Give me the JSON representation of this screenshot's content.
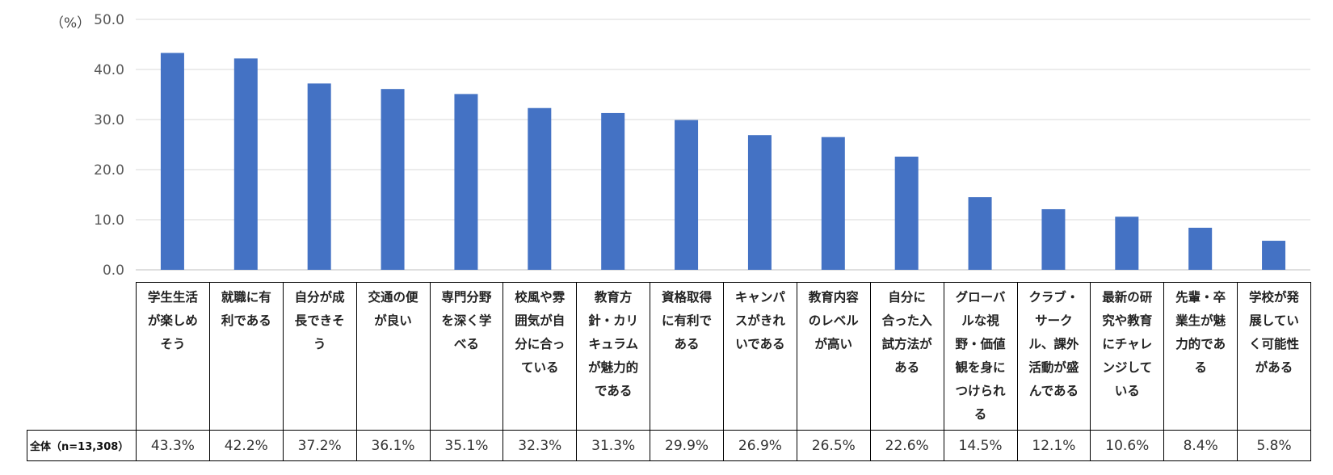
{
  "chart_data": {
    "type": "bar",
    "unit_label": "（%）",
    "ylim": [
      0,
      50
    ],
    "yticks": [
      "0.0",
      "10.0",
      "20.0",
      "30.0",
      "40.0",
      "50.0"
    ],
    "grid": true,
    "bar_color": "#4472C4",
    "categories": [
      "学生生活が楽しめそう",
      "就職に有利である",
      "自分が成長できそう",
      "交通の便が良い",
      "専門分野を深く学べる",
      "校風や雰囲気が自分に合っている",
      "教育方針・カリキュラムが魅力的である",
      "資格取得に有利である",
      "キャンパスがきれいである",
      "教育内容のレベルが高い",
      "自分に合った入試方法がある",
      "グローバルな視野・価値観を身につけられる",
      "クラブ・サークル、課外活動が盛んである",
      "最新の研究や教育にチャレンジしている",
      "先輩・卒業生が魅力的である",
      "学校が発展していく可能性がある"
    ],
    "category_lines": [
      [
        "学生生活",
        "が楽しめ",
        "そう"
      ],
      [
        "就職に有",
        "利である"
      ],
      [
        "自分が成",
        "長できそ",
        "う"
      ],
      [
        "交通の便",
        "が良い"
      ],
      [
        "専門分野",
        "を深く学",
        "べる"
      ],
      [
        "校風や雰",
        "囲気が自",
        "分に合っ",
        "ている"
      ],
      [
        "教育方",
        "針・カリ",
        "キュラム",
        "が魅力的",
        "である"
      ],
      [
        "資格取得",
        "に有利で",
        "ある"
      ],
      [
        "キャンパ",
        "スがきれ",
        "いである"
      ],
      [
        "教育内容",
        "のレベル",
        "が高い"
      ],
      [
        "自分に",
        "合った入",
        "試方法が",
        "ある"
      ],
      [
        "グローバ",
        "ルな視",
        "野・価値",
        "観を身に",
        "つけられ",
        "る"
      ],
      [
        "クラブ・",
        "サーク",
        "ル、課外",
        "活動が盛",
        "んである"
      ],
      [
        "最新の研",
        "究や教育",
        "にチャレ",
        "ンジして",
        "いる"
      ],
      [
        "先輩・卒",
        "業生が魅",
        "力的であ",
        "る"
      ],
      [
        "学校が発",
        "展してい",
        "く可能性",
        "がある"
      ]
    ],
    "values": [
      43.3,
      42.2,
      37.2,
      36.1,
      35.1,
      32.3,
      31.3,
      29.9,
      26.9,
      26.5,
      22.6,
      14.5,
      12.1,
      10.6,
      8.4,
      5.8
    ],
    "series": [
      {
        "name": "全体（n=13,308）",
        "value_labels": [
          "43.3%",
          "42.2%",
          "37.2%",
          "36.1%",
          "35.1%",
          "32.3%",
          "31.3%",
          "29.9%",
          "26.9%",
          "26.5%",
          "22.6%",
          "14.5%",
          "12.1%",
          "10.6%",
          "8.4%",
          "5.8%"
        ]
      }
    ]
  }
}
